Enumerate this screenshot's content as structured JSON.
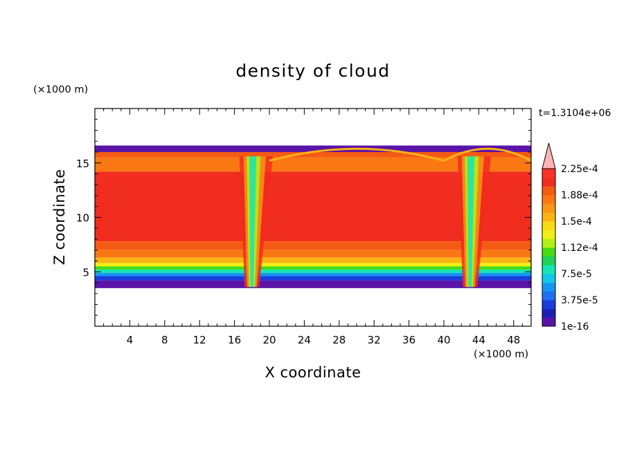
{
  "chart_data": {
    "type": "heatmap",
    "title": "density of cloud",
    "xlabel": "X coordinate",
    "ylabel": "Z coordinate",
    "x_unit": "(×1000 m)",
    "y_unit": "(×1000 m)",
    "time_label": "t=1.3104e+06",
    "xlim": [
      0,
      50
    ],
    "ylim": [
      0,
      20
    ],
    "x_ticks": [
      4,
      8,
      12,
      16,
      20,
      24,
      28,
      32,
      36,
      40,
      44,
      48
    ],
    "y_ticks": [
      5,
      10,
      15
    ],
    "colorbar": {
      "levels": [
        "1e-16",
        "3.75e-5",
        "7.5e-5",
        "1.12e-4",
        "1.5e-4",
        "1.88e-4",
        "2.25e-4"
      ],
      "colors": [
        "#5a14a8",
        "#1e1eb4",
        "#1a3cdc",
        "#1e6ef0",
        "#1496f0",
        "#14c8e6",
        "#14e6b4",
        "#1ed25a",
        "#46dc14",
        "#b4f014",
        "#f0f014",
        "#fadc14",
        "#fab414",
        "#fa9614",
        "#fa7814",
        "#f55a14",
        "#f02d1e",
        "#ff3228"
      ],
      "overflow_color": "#ffb4b4"
    },
    "cloud_layer": {
      "base_km": 3.5,
      "top_km": 16.5,
      "core_km": [
        7,
        14.5
      ],
      "downdrafts_km": [
        18,
        43
      ]
    }
  }
}
